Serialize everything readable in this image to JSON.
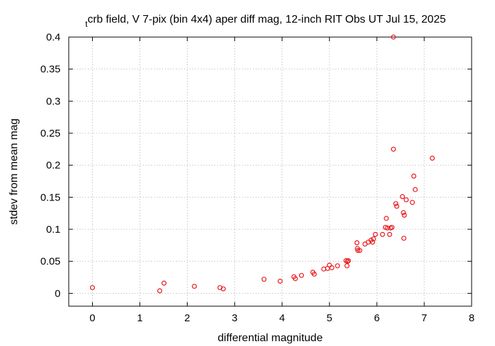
{
  "chart_data": {
    "type": "scatter",
    "title_prefix": "t",
    "title": "crb field, V 7-pix (bin 4x4) aper diff mag,  12-inch RIT Obs UT Jul 15, 2025",
    "xlabel": "differential magnitude",
    "ylabel": "stdev from mean mag",
    "xlim": [
      -0.5,
      8
    ],
    "ylim": [
      -0.02,
      0.4
    ],
    "xticks": [
      0,
      1,
      2,
      3,
      4,
      5,
      6,
      7,
      8
    ],
    "yticks": [
      0,
      0.05,
      0.1,
      0.15,
      0.2,
      0.25,
      0.3,
      0.35,
      0.4
    ],
    "xtick_labels": [
      "0",
      "1",
      "2",
      "3",
      "4",
      "5",
      "6",
      "7",
      "8"
    ],
    "ytick_labels": [
      "0",
      "0.05",
      "0.1",
      "0.15",
      "0.2",
      "0.25",
      "0.3",
      "0.35",
      "0.4"
    ],
    "grid": true,
    "marker_color": "#e8161b",
    "series": [
      {
        "x": [
          0.0,
          1.42,
          1.51,
          2.15,
          2.69,
          2.76,
          3.62,
          3.96,
          4.25,
          4.28,
          4.41,
          4.65,
          4.68,
          4.88,
          4.96,
          5.0,
          5.05,
          5.17,
          5.35,
          5.37,
          5.38,
          5.4,
          5.58,
          5.59,
          5.6,
          5.64,
          5.75,
          5.82,
          5.88,
          5.91,
          5.93,
          5.97,
          6.12,
          6.18,
          6.2,
          6.22,
          6.27,
          6.29,
          6.32,
          6.35,
          6.35,
          6.4,
          6.42,
          6.54,
          6.56,
          6.57,
          6.58,
          6.62,
          6.75,
          6.78,
          6.81,
          7.17
        ],
        "y": [
          0.009,
          0.004,
          0.016,
          0.011,
          0.009,
          0.007,
          0.022,
          0.019,
          0.026,
          0.023,
          0.028,
          0.033,
          0.03,
          0.038,
          0.039,
          0.044,
          0.04,
          0.043,
          0.051,
          0.043,
          0.05,
          0.051,
          0.079,
          0.07,
          0.067,
          0.067,
          0.077,
          0.08,
          0.083,
          0.08,
          0.085,
          0.092,
          0.092,
          0.103,
          0.117,
          0.102,
          0.092,
          0.102,
          0.103,
          0.4,
          0.225,
          0.14,
          0.136,
          0.151,
          0.126,
          0.086,
          0.122,
          0.146,
          0.142,
          0.183,
          0.162,
          0.211
        ]
      }
    ]
  }
}
